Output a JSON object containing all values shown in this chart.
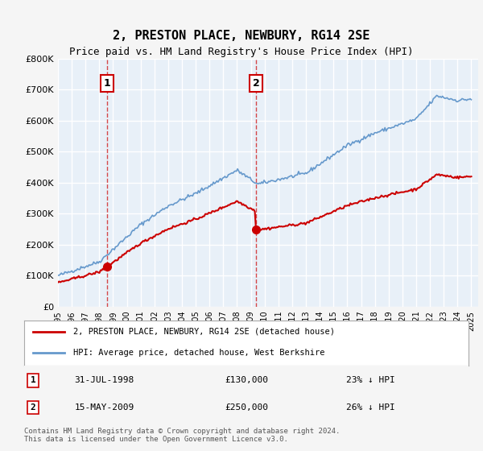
{
  "title": "2, PRESTON PLACE, NEWBURY, RG14 2SE",
  "subtitle": "Price paid vs. HM Land Registry's House Price Index (HPI)",
  "ylabel_ticks": [
    "£0",
    "£100K",
    "£200K",
    "£300K",
    "£400K",
    "£500K",
    "£600K",
    "£700K",
    "£800K"
  ],
  "ylim": [
    0,
    800000
  ],
  "xlim_start": 1995.0,
  "xlim_end": 2025.5,
  "background_color": "#e8f0f8",
  "plot_bg_color": "#e8f0f8",
  "grid_color": "#ffffff",
  "red_line_color": "#cc0000",
  "blue_line_color": "#6699cc",
  "purchase1_date": "31-JUL-1998",
  "purchase1_year": 1998.58,
  "purchase1_price": 130000,
  "purchase1_label": "1",
  "purchase2_date": "15-MAY-2009",
  "purchase2_year": 2009.37,
  "purchase2_price": 250000,
  "purchase2_label": "2",
  "legend_line1": "2, PRESTON PLACE, NEWBURY, RG14 2SE (detached house)",
  "legend_line2": "HPI: Average price, detached house, West Berkshire",
  "footer": "Contains HM Land Registry data © Crown copyright and database right 2024.\nThis data is licensed under the Open Government Licence v3.0.",
  "table_rows": [
    {
      "num": "1",
      "date": "31-JUL-1998",
      "price": "£130,000",
      "hpi": "23% ↓ HPI"
    },
    {
      "num": "2",
      "date": "15-MAY-2009",
      "price": "£250,000",
      "hpi": "26% ↓ HPI"
    }
  ]
}
